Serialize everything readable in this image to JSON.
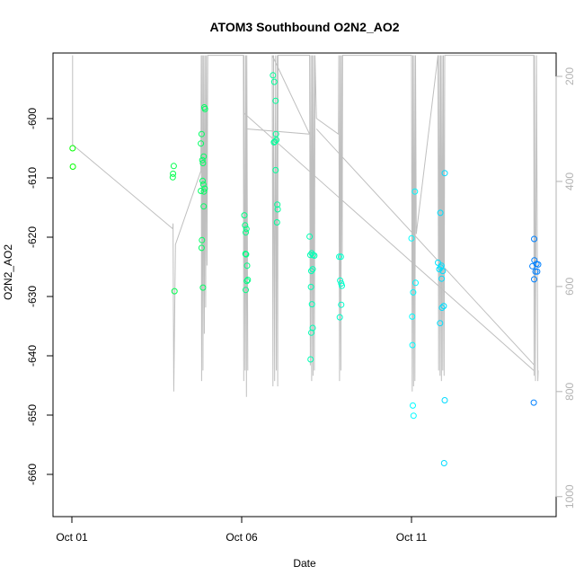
{
  "chart_data": {
    "type": "scatter",
    "title": "ATOM3 Southbound O2N2_AO2",
    "xlabel": "Date",
    "ylabel": "O2N2_AO2",
    "x_ticks": [
      {
        "day": 1,
        "label": "Oct 01"
      },
      {
        "day": 6,
        "label": "Oct 06"
      },
      {
        "day": 11,
        "label": "Oct 11"
      }
    ],
    "y_ticks": [
      -600,
      -610,
      -620,
      -630,
      -640,
      -650,
      -660
    ],
    "y2_ticks": [
      200,
      400,
      600,
      800,
      1000
    ],
    "xlim_days": [
      0.95,
      15.0
    ],
    "ylim": [
      -660,
      -590
    ],
    "y2lim": [
      1000,
      160
    ],
    "y2_reversed": true,
    "grid": false,
    "point_color_scale": [
      "#00ff00",
      "#00ffff",
      "#0080ff"
    ],
    "points": [
      {
        "x": 1.02,
        "y": -605.0
      },
      {
        "x": 1.03,
        "y": -608.1
      },
      {
        "x": 4.0,
        "y": -608.0
      },
      {
        "x": 3.98,
        "y": -609.3
      },
      {
        "x": 3.97,
        "y": -609.9
      },
      {
        "x": 4.02,
        "y": -629.1
      },
      {
        "x": 4.8,
        "y": -604.2
      },
      {
        "x": 4.82,
        "y": -602.6
      },
      {
        "x": 4.84,
        "y": -607.0
      },
      {
        "x": 4.86,
        "y": -607.5
      },
      {
        "x": 4.88,
        "y": -606.4
      },
      {
        "x": 4.9,
        "y": -598.1
      },
      {
        "x": 4.92,
        "y": -598.4
      },
      {
        "x": 4.85,
        "y": -610.5
      },
      {
        "x": 4.87,
        "y": -611.1
      },
      {
        "x": 4.89,
        "y": -612.3
      },
      {
        "x": 4.91,
        "y": -611.8
      },
      {
        "x": 4.8,
        "y": -612.2
      },
      {
        "x": 4.88,
        "y": -614.8
      },
      {
        "x": 4.83,
        "y": -620.5
      },
      {
        "x": 4.82,
        "y": -621.8
      },
      {
        "x": 4.86,
        "y": -628.5
      },
      {
        "x": 6.08,
        "y": -616.3
      },
      {
        "x": 6.1,
        "y": -618.0
      },
      {
        "x": 6.12,
        "y": -619.2
      },
      {
        "x": 6.14,
        "y": -618.6
      },
      {
        "x": 6.11,
        "y": -622.8
      },
      {
        "x": 6.13,
        "y": -622.9
      },
      {
        "x": 6.16,
        "y": -624.8
      },
      {
        "x": 6.15,
        "y": -627.4
      },
      {
        "x": 6.18,
        "y": -627.2
      },
      {
        "x": 6.12,
        "y": -628.9
      },
      {
        "x": 6.92,
        "y": -592.7
      },
      {
        "x": 6.96,
        "y": -593.8
      },
      {
        "x": 7.0,
        "y": -597.0
      },
      {
        "x": 7.02,
        "y": -603.6
      },
      {
        "x": 6.95,
        "y": -604.0
      },
      {
        "x": 6.98,
        "y": -603.9
      },
      {
        "x": 7.01,
        "y": -602.6
      },
      {
        "x": 7.0,
        "y": -608.7
      },
      {
        "x": 7.05,
        "y": -614.5
      },
      {
        "x": 7.06,
        "y": -615.3
      },
      {
        "x": 7.04,
        "y": -617.5
      },
      {
        "x": 8.0,
        "y": -619.9
      },
      {
        "x": 8.06,
        "y": -622.7
      },
      {
        "x": 8.1,
        "y": -623.0
      },
      {
        "x": 8.14,
        "y": -623.1
      },
      {
        "x": 8.02,
        "y": -623.0
      },
      {
        "x": 8.05,
        "y": -625.7
      },
      {
        "x": 8.09,
        "y": -625.4
      },
      {
        "x": 8.04,
        "y": -628.4
      },
      {
        "x": 8.07,
        "y": -631.3
      },
      {
        "x": 8.09,
        "y": -635.3
      },
      {
        "x": 8.05,
        "y": -636.1
      },
      {
        "x": 8.03,
        "y": -640.6
      },
      {
        "x": 8.87,
        "y": -623.3
      },
      {
        "x": 8.92,
        "y": -623.3
      },
      {
        "x": 8.9,
        "y": -627.3
      },
      {
        "x": 8.93,
        "y": -627.8
      },
      {
        "x": 8.95,
        "y": -628.2
      },
      {
        "x": 8.93,
        "y": -631.4
      },
      {
        "x": 8.89,
        "y": -633.5
      },
      {
        "x": 11.0,
        "y": -620.2
      },
      {
        "x": 11.1,
        "y": -612.3
      },
      {
        "x": 11.05,
        "y": -629.3
      },
      {
        "x": 11.12,
        "y": -627.7
      },
      {
        "x": 11.02,
        "y": -633.4
      },
      {
        "x": 11.03,
        "y": -638.2
      },
      {
        "x": 11.04,
        "y": -648.4
      },
      {
        "x": 11.06,
        "y": -650.1
      },
      {
        "x": 11.85,
        "y": -615.9
      },
      {
        "x": 11.98,
        "y": -609.2
      },
      {
        "x": 11.78,
        "y": -624.3
      },
      {
        "x": 11.82,
        "y": -625.4
      },
      {
        "x": 11.88,
        "y": -624.8
      },
      {
        "x": 11.92,
        "y": -625.7
      },
      {
        "x": 11.86,
        "y": -625.1
      },
      {
        "x": 11.89,
        "y": -627.0
      },
      {
        "x": 11.9,
        "y": -631.9
      },
      {
        "x": 11.95,
        "y": -631.6
      },
      {
        "x": 11.84,
        "y": -634.5
      },
      {
        "x": 11.98,
        "y": -647.5
      },
      {
        "x": 11.96,
        "y": -658.1
      },
      {
        "x": 14.61,
        "y": -620.3
      },
      {
        "x": 14.62,
        "y": -623.9
      },
      {
        "x": 14.68,
        "y": -624.5
      },
      {
        "x": 14.73,
        "y": -624.6
      },
      {
        "x": 14.56,
        "y": -624.9
      },
      {
        "x": 14.7,
        "y": -625.8
      },
      {
        "x": 14.65,
        "y": -625.8
      },
      {
        "x": 14.61,
        "y": -627.1
      },
      {
        "x": 14.6,
        "y": -647.9
      }
    ],
    "profile_series": {
      "axis": "y2",
      "color": "#bfbfbf",
      "points": [
        [
          1.02,
          160
        ],
        [
          1.02,
          330
        ],
        [
          3.97,
          490
        ],
        [
          3.98,
          480
        ],
        [
          4.0,
          800
        ],
        [
          4.05,
          520
        ],
        [
          4.8,
          380
        ],
        [
          4.81,
          160
        ],
        [
          4.82,
          780
        ],
        [
          4.84,
          160
        ],
        [
          4.86,
          760
        ],
        [
          4.88,
          160
        ],
        [
          4.9,
          690
        ],
        [
          4.92,
          160
        ],
        [
          4.94,
          640
        ],
        [
          4.96,
          160
        ],
        [
          4.98,
          560
        ],
        [
          5.0,
          160
        ],
        [
          6.05,
          160
        ],
        [
          6.06,
          780
        ],
        [
          6.07,
          160
        ],
        [
          6.1,
          760
        ],
        [
          6.12,
          160
        ],
        [
          6.14,
          810
        ],
        [
          6.15,
          160
        ],
        [
          6.18,
          760
        ],
        [
          6.14,
          270
        ],
        [
          6.16,
          300
        ],
        [
          8.0,
          310
        ],
        [
          6.9,
          160
        ],
        [
          6.92,
          790
        ],
        [
          6.94,
          160
        ],
        [
          6.97,
          780
        ],
        [
          7.0,
          160
        ],
        [
          7.02,
          760
        ],
        [
          7.05,
          160
        ],
        [
          7.06,
          790
        ],
        [
          7.07,
          160
        ],
        [
          8.0,
          160
        ],
        [
          8.02,
          750
        ],
        [
          8.04,
          160
        ],
        [
          8.06,
          780
        ],
        [
          8.08,
          160
        ],
        [
          8.1,
          770
        ],
        [
          8.12,
          160
        ],
        [
          8.14,
          760
        ],
        [
          8.16,
          160
        ],
        [
          8.2,
          280
        ],
        [
          8.85,
          310
        ],
        [
          8.86,
          160
        ],
        [
          8.88,
          780
        ],
        [
          8.9,
          160
        ],
        [
          8.92,
          760
        ],
        [
          8.94,
          160
        ],
        [
          8.96,
          540
        ],
        [
          8.97,
          160
        ],
        [
          11.0,
          160
        ],
        [
          11.02,
          800
        ],
        [
          11.04,
          160
        ],
        [
          11.06,
          790
        ],
        [
          11.08,
          160
        ],
        [
          11.1,
          780
        ],
        [
          11.12,
          160
        ],
        [
          11.14,
          500
        ],
        [
          11.78,
          160
        ],
        [
          11.8,
          760
        ],
        [
          11.82,
          160
        ],
        [
          11.84,
          770
        ],
        [
          11.86,
          160
        ],
        [
          11.88,
          780
        ],
        [
          11.9,
          160
        ],
        [
          11.92,
          760
        ],
        [
          11.94,
          160
        ],
        [
          11.96,
          770
        ],
        [
          11.98,
          160
        ],
        [
          14.6,
          160
        ],
        [
          14.61,
          770
        ],
        [
          14.62,
          160
        ],
        [
          14.65,
          780
        ],
        [
          14.68,
          160
        ],
        [
          14.72,
          780
        ],
        [
          14.73,
          760
        ]
      ],
      "diagonals": [
        [
          [
            6.07,
            270
          ],
          [
            14.6,
            760
          ]
        ],
        [
          [
            8.2,
            300
          ],
          [
            14.62,
            750
          ]
        ]
      ]
    }
  }
}
